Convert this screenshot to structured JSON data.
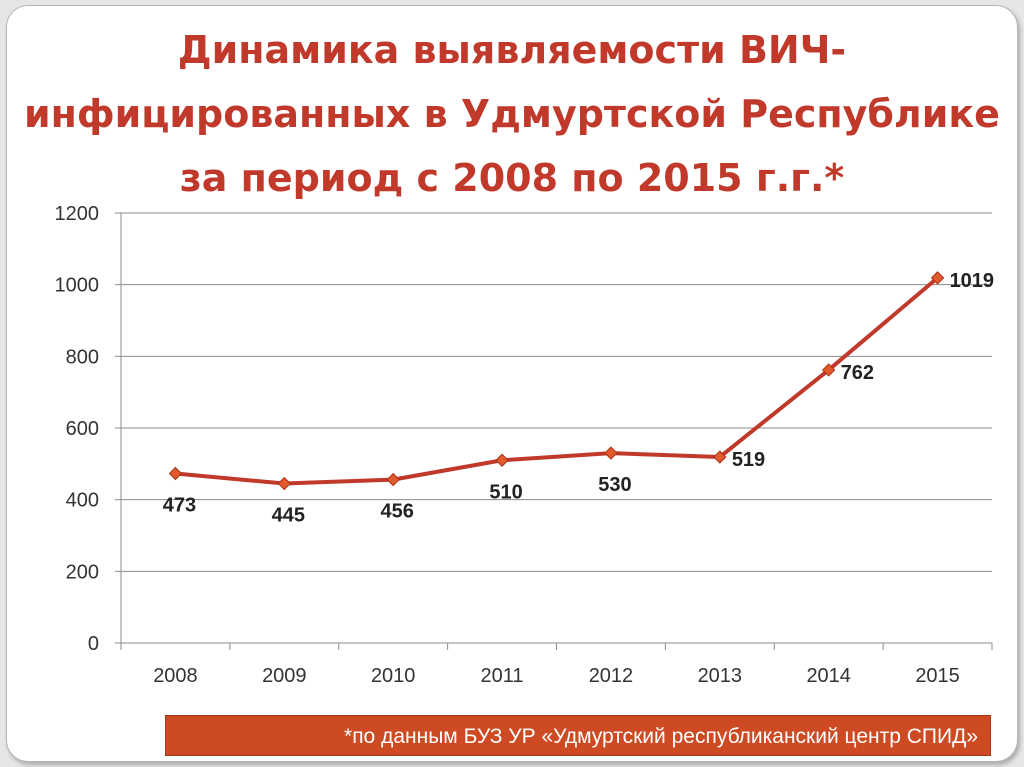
{
  "title_lines": [
    "Динамика выявляемости ВИЧ-",
    "инфицированных в Удмуртской Республике",
    "за период с 2008 по 2015 г.г.*"
  ],
  "footnote": "*по данным БУЗ УР «Удмуртский республиканский центр СПИД»",
  "colors": {
    "title": "#c0392b",
    "line": "#c0392b",
    "marker": "#e05a2b",
    "footnote_bg": "#cd4a22"
  },
  "chart_data": {
    "type": "line",
    "title": "Динамика выявляемости ВИЧ-инфицированных в Удмуртской Республике за период с 2008 по 2015 г.г.*",
    "xlabel": "",
    "ylabel": "",
    "categories": [
      "2008",
      "2009",
      "2010",
      "2011",
      "2012",
      "2013",
      "2014",
      "2015"
    ],
    "series": [
      {
        "values": [
          473,
          445,
          456,
          510,
          530,
          519,
          762,
          1019
        ]
      }
    ],
    "data_labels": [
      "473",
      "445",
      "456",
      "510",
      "530",
      "519",
      "762",
      "1019"
    ],
    "ylim": [
      0,
      1200
    ],
    "yticks": [
      0,
      200,
      400,
      600,
      800,
      1000,
      1200
    ],
    "ytick_labels": [
      "0",
      "200",
      "400",
      "600",
      "800",
      "1000",
      "1200"
    ],
    "grid": true,
    "legend": "none"
  }
}
